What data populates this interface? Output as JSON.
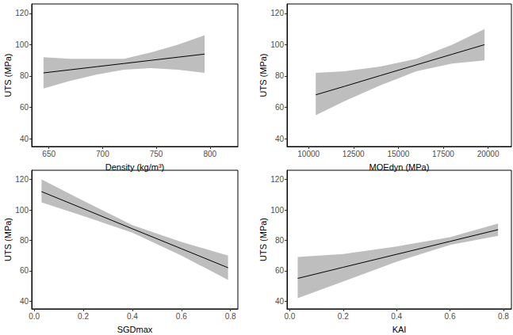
{
  "chart_data": [
    {
      "type": "line",
      "xlabel": "Density (kg/m³)",
      "ylabel": "UTS (MPa)",
      "x": [
        645,
        670,
        695,
        720,
        745,
        770,
        795
      ],
      "values": [
        82,
        84,
        86,
        88,
        90,
        92,
        94
      ],
      "lower": [
        72,
        77,
        81,
        84,
        85,
        84,
        82
      ],
      "upper": [
        92,
        91,
        91,
        91,
        95,
        100,
        106
      ],
      "color": "#000000",
      "line_style": "solid",
      "grid": false,
      "xlim": [
        634,
        826
      ],
      "xticks": [
        650,
        700,
        750,
        800
      ],
      "ylim": [
        35,
        126
      ],
      "yticks": [
        40,
        60,
        80,
        100,
        120
      ]
    },
    {
      "type": "line",
      "xlabel": "MOEdyn (MPa)",
      "ylabel": "UTS (MPa)",
      "x": [
        10400,
        12000,
        14000,
        16000,
        18000,
        19800
      ],
      "values": [
        68,
        73.4,
        80.3,
        87.1,
        93.9,
        100
      ],
      "lower": [
        55,
        64,
        74,
        83,
        88,
        90
      ],
      "upper": [
        82,
        83,
        86,
        91,
        100,
        110
      ],
      "color": "#000000",
      "line_style": "solid",
      "grid": false,
      "xlim": [
        8800,
        21300
      ],
      "xticks": [
        10000,
        12500,
        15000,
        17500,
        20000
      ],
      "ylim": [
        35,
        126
      ],
      "yticks": [
        40,
        60,
        80,
        100,
        120
      ]
    },
    {
      "type": "line",
      "xlabel": "SGDmax",
      "ylabel": "UTS (MPa)",
      "x": [
        0.03,
        0.2,
        0.4,
        0.6,
        0.79
      ],
      "values": [
        112,
        100.8,
        87.6,
        74.5,
        62
      ],
      "lower": [
        105,
        96,
        85,
        70,
        54
      ],
      "upper": [
        120,
        106,
        90,
        79,
        70
      ],
      "color": "#000000",
      "line_style": "solid",
      "grid": false,
      "xlim": [
        -0.01,
        0.83
      ],
      "xticks": [
        {
          "value": 0,
          "label": "0.0"
        },
        0.2,
        0.4,
        0.6,
        0.8
      ],
      "ylim": [
        35,
        126
      ],
      "yticks": [
        40,
        60,
        80,
        100,
        120
      ]
    },
    {
      "type": "line",
      "xlabel": "KAI",
      "ylabel": "UTS (MPa)",
      "x": [
        0.03,
        0.2,
        0.4,
        0.6,
        0.78
      ],
      "values": [
        55,
        62.3,
        70.8,
        79.3,
        87
      ],
      "lower": [
        42,
        53,
        66,
        77,
        83
      ],
      "upper": [
        69,
        71,
        76,
        82,
        91
      ],
      "color": "#000000",
      "line_style": "solid",
      "grid": false,
      "xlim": [
        -0.01,
        0.83
      ],
      "xticks": [
        {
          "value": 0,
          "label": "0.0"
        },
        0.2,
        0.4,
        0.6,
        0.8
      ],
      "ylim": [
        35,
        126
      ],
      "yticks": [
        40,
        60,
        80,
        100,
        120
      ]
    }
  ]
}
